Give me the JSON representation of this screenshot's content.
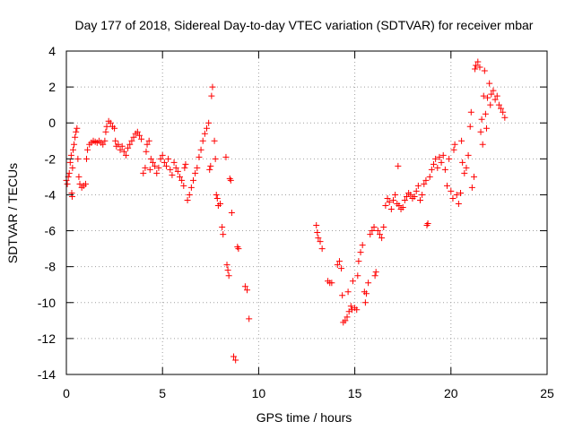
{
  "chart_data": {
    "type": "scatter",
    "title": "Day 177 of 2018, Sidereal Day-to-day VTEC variation (SDTVAR) for receiver mbar",
    "xlabel": "GPS time / hours",
    "ylabel": "SDTVAR / TECUs",
    "xlim": [
      0,
      25
    ],
    "ylim": [
      -14,
      4
    ],
    "xticks": [
      0,
      5,
      10,
      15,
      20,
      25
    ],
    "yticks": [
      -14,
      -12,
      -10,
      -8,
      -6,
      -4,
      -2,
      0,
      2,
      4
    ],
    "grid": true,
    "marker": "+",
    "color": "#ff0000",
    "series": [
      {
        "name": "SDTVAR",
        "points": [
          [
            0.0,
            -3.2
          ],
          [
            0.05,
            -3.4
          ],
          [
            0.1,
            -3.0
          ],
          [
            0.15,
            -2.8
          ],
          [
            0.2,
            -2.2
          ],
          [
            0.25,
            -1.8
          ],
          [
            0.28,
            -3.9
          ],
          [
            0.3,
            -4.1
          ],
          [
            0.32,
            -2.5
          ],
          [
            0.35,
            -1.5
          ],
          [
            0.4,
            -1.2
          ],
          [
            0.45,
            -0.8
          ],
          [
            0.5,
            -0.5
          ],
          [
            0.55,
            -0.3
          ],
          [
            0.6,
            -2.0
          ],
          [
            0.65,
            -3.0
          ],
          [
            0.7,
            -3.4
          ],
          [
            0.8,
            -3.6
          ],
          [
            0.9,
            -3.5
          ],
          [
            1.0,
            -3.4
          ],
          [
            1.05,
            -2.0
          ],
          [
            1.1,
            -1.5
          ],
          [
            1.2,
            -1.2
          ],
          [
            1.3,
            -1.1
          ],
          [
            1.4,
            -1.0
          ],
          [
            1.5,
            -1.05
          ],
          [
            1.6,
            -1.1
          ],
          [
            1.7,
            -1.0
          ],
          [
            1.8,
            -1.1
          ],
          [
            1.9,
            -1.2
          ],
          [
            2.0,
            -1.0
          ],
          [
            2.05,
            -0.5
          ],
          [
            2.1,
            -0.2
          ],
          [
            2.2,
            0.1
          ],
          [
            2.3,
            0.0
          ],
          [
            2.4,
            -0.2
          ],
          [
            2.5,
            -0.3
          ],
          [
            2.55,
            -1.0
          ],
          [
            2.6,
            -1.3
          ],
          [
            2.7,
            -1.2
          ],
          [
            2.8,
            -1.5
          ],
          [
            2.9,
            -1.3
          ],
          [
            3.0,
            -1.6
          ],
          [
            3.1,
            -1.8
          ],
          [
            3.2,
            -1.4
          ],
          [
            3.3,
            -1.2
          ],
          [
            3.4,
            -1.0
          ],
          [
            3.5,
            -0.8
          ],
          [
            3.6,
            -0.6
          ],
          [
            3.7,
            -0.5
          ],
          [
            3.8,
            -0.7
          ],
          [
            3.9,
            -0.9
          ],
          [
            4.0,
            -2.8
          ],
          [
            4.1,
            -2.5
          ],
          [
            4.15,
            -1.6
          ],
          [
            4.2,
            -1.2
          ],
          [
            4.3,
            -1.0
          ],
          [
            4.35,
            -2.6
          ],
          [
            4.4,
            -2.0
          ],
          [
            4.5,
            -2.2
          ],
          [
            4.6,
            -2.4
          ],
          [
            4.7,
            -2.8
          ],
          [
            4.8,
            -2.5
          ],
          [
            4.9,
            -2.0
          ],
          [
            5.0,
            -1.8
          ],
          [
            5.1,
            -2.2
          ],
          [
            5.2,
            -2.4
          ],
          [
            5.3,
            -2.0
          ],
          [
            5.4,
            -2.6
          ],
          [
            5.5,
            -2.9
          ],
          [
            5.6,
            -2.2
          ],
          [
            5.7,
            -2.5
          ],
          [
            5.8,
            -2.7
          ],
          [
            5.9,
            -3.0
          ],
          [
            6.0,
            -3.2
          ],
          [
            6.1,
            -3.5
          ],
          [
            6.15,
            -2.5
          ],
          [
            6.2,
            -2.3
          ],
          [
            6.3,
            -4.3
          ],
          [
            6.4,
            -4.0
          ],
          [
            6.5,
            -3.6
          ],
          [
            6.6,
            -3.2
          ],
          [
            6.7,
            -2.8
          ],
          [
            6.8,
            -2.5
          ],
          [
            6.9,
            -1.9
          ],
          [
            7.0,
            -1.5
          ],
          [
            7.1,
            -1.0
          ],
          [
            7.2,
            -0.6
          ],
          [
            7.3,
            -0.3
          ],
          [
            7.4,
            0.0
          ],
          [
            7.45,
            -2.6
          ],
          [
            7.5,
            -2.4
          ],
          [
            7.55,
            1.5
          ],
          [
            7.6,
            2.0
          ],
          [
            7.7,
            -1.0
          ],
          [
            7.75,
            -2.0
          ],
          [
            7.8,
            -4.0
          ],
          [
            7.85,
            -4.2
          ],
          [
            7.9,
            -4.6
          ],
          [
            8.0,
            -4.5
          ],
          [
            8.1,
            -5.8
          ],
          [
            8.15,
            -6.2
          ],
          [
            8.3,
            -1.9
          ],
          [
            8.35,
            -7.9
          ],
          [
            8.4,
            -8.2
          ],
          [
            8.45,
            -8.5
          ],
          [
            8.5,
            -3.1
          ],
          [
            8.55,
            -3.2
          ],
          [
            8.6,
            -5.0
          ],
          [
            8.7,
            -13.0
          ],
          [
            8.8,
            -13.2
          ],
          [
            8.9,
            -6.9
          ],
          [
            8.95,
            -7.0
          ],
          [
            9.3,
            -9.1
          ],
          [
            9.4,
            -9.3
          ],
          [
            9.5,
            -10.9
          ],
          [
            13.0,
            -5.7
          ],
          [
            13.05,
            -6.1
          ],
          [
            13.1,
            -6.4
          ],
          [
            13.2,
            -6.6
          ],
          [
            13.3,
            -7.0
          ],
          [
            13.6,
            -8.8
          ],
          [
            13.7,
            -8.9
          ],
          [
            13.8,
            -8.9
          ],
          [
            14.1,
            -7.9
          ],
          [
            14.2,
            -7.7
          ],
          [
            14.3,
            -8.1
          ],
          [
            14.35,
            -9.6
          ],
          [
            14.4,
            -11.1
          ],
          [
            14.5,
            -11.0
          ],
          [
            14.6,
            -10.8
          ],
          [
            14.65,
            -9.4
          ],
          [
            14.7,
            -10.5
          ],
          [
            14.8,
            -10.2
          ],
          [
            14.85,
            -10.4
          ],
          [
            14.9,
            -8.8
          ],
          [
            15.0,
            -10.3
          ],
          [
            15.1,
            -10.4
          ],
          [
            15.15,
            -8.5
          ],
          [
            15.2,
            -7.7
          ],
          [
            15.3,
            -7.2
          ],
          [
            15.4,
            -6.8
          ],
          [
            15.5,
            -9.4
          ],
          [
            15.55,
            -10.0
          ],
          [
            15.6,
            -9.5
          ],
          [
            15.7,
            -8.9
          ],
          [
            15.8,
            -6.2
          ],
          [
            15.9,
            -6.0
          ],
          [
            16.0,
            -5.8
          ],
          [
            16.05,
            -8.5
          ],
          [
            16.1,
            -8.3
          ],
          [
            16.2,
            -6.0
          ],
          [
            16.3,
            -6.2
          ],
          [
            16.4,
            -6.4
          ],
          [
            16.5,
            -5.8
          ],
          [
            16.6,
            -4.6
          ],
          [
            16.7,
            -4.2
          ],
          [
            16.8,
            -4.4
          ],
          [
            16.9,
            -4.8
          ],
          [
            17.0,
            -4.3
          ],
          [
            17.1,
            -4.0
          ],
          [
            17.2,
            -4.5
          ],
          [
            17.25,
            -2.4
          ],
          [
            17.3,
            -4.6
          ],
          [
            17.4,
            -4.8
          ],
          [
            17.5,
            -4.7
          ],
          [
            17.6,
            -4.3
          ],
          [
            17.7,
            -4.1
          ],
          [
            17.8,
            -3.9
          ],
          [
            17.9,
            -4.0
          ],
          [
            18.0,
            -4.2
          ],
          [
            18.1,
            -4.1
          ],
          [
            18.2,
            -3.8
          ],
          [
            18.3,
            -3.5
          ],
          [
            18.4,
            -4.3
          ],
          [
            18.5,
            -4.0
          ],
          [
            18.6,
            -3.4
          ],
          [
            18.7,
            -3.2
          ],
          [
            18.75,
            -5.7
          ],
          [
            18.8,
            -5.6
          ],
          [
            18.9,
            -3.0
          ],
          [
            19.0,
            -2.6
          ],
          [
            19.1,
            -2.3
          ],
          [
            19.2,
            -2.0
          ],
          [
            19.3,
            -2.5
          ],
          [
            19.4,
            -1.9
          ],
          [
            19.5,
            -2.2
          ],
          [
            19.6,
            -1.8
          ],
          [
            19.7,
            -2.6
          ],
          [
            19.8,
            -3.5
          ],
          [
            19.9,
            -2.0
          ],
          [
            20.0,
            -3.8
          ],
          [
            20.1,
            -4.2
          ],
          [
            20.15,
            -1.5
          ],
          [
            20.2,
            -1.2
          ],
          [
            20.3,
            -4.0
          ],
          [
            20.4,
            -4.5
          ],
          [
            20.5,
            -3.9
          ],
          [
            20.55,
            -1.0
          ],
          [
            20.6,
            -2.2
          ],
          [
            20.7,
            -2.8
          ],
          [
            20.8,
            -2.5
          ],
          [
            20.9,
            -1.8
          ],
          [
            21.0,
            -0.2
          ],
          [
            21.05,
            0.6
          ],
          [
            21.1,
            -3.6
          ],
          [
            21.2,
            -3.0
          ],
          [
            21.25,
            3.0
          ],
          [
            21.3,
            3.2
          ],
          [
            21.4,
            3.4
          ],
          [
            21.5,
            3.1
          ],
          [
            21.55,
            -0.5
          ],
          [
            21.6,
            0.2
          ],
          [
            21.65,
            -1.2
          ],
          [
            21.7,
            1.5
          ],
          [
            21.75,
            2.9
          ],
          [
            21.8,
            0.5
          ],
          [
            21.85,
            -0.3
          ],
          [
            21.9,
            1.4
          ],
          [
            22.0,
            2.2
          ],
          [
            22.05,
            1.0
          ],
          [
            22.1,
            1.6
          ],
          [
            22.2,
            1.8
          ],
          [
            22.3,
            1.3
          ],
          [
            22.4,
            1.5
          ],
          [
            22.5,
            1.0
          ],
          [
            22.6,
            0.8
          ],
          [
            22.7,
            0.6
          ],
          [
            22.8,
            0.3
          ]
        ]
      }
    ]
  }
}
